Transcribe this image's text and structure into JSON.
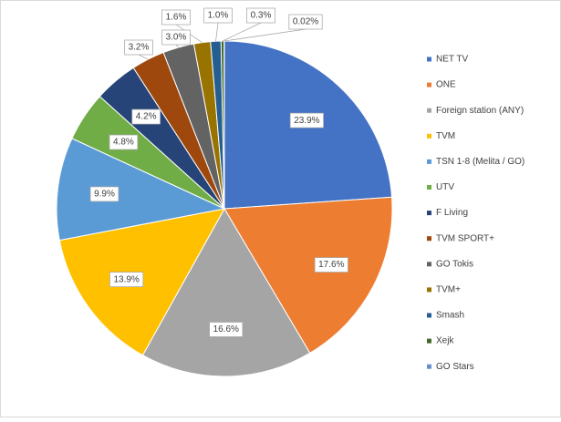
{
  "chart_data": {
    "type": "pie",
    "categories": [
      "NET TV",
      "ONE",
      "Foreign station (ANY)",
      "TVM",
      "TSN 1-8 (Melita / GO)",
      "UTV",
      "F Living",
      "TVM SPORT+",
      "GO Tokis",
      "TVM+",
      "Smash",
      "Xejk",
      "GO Stars"
    ],
    "values": [
      23.9,
      17.6,
      16.6,
      13.9,
      9.9,
      4.8,
      4.2,
      3.2,
      3.0,
      1.6,
      1.0,
      0.3,
      0.02
    ],
    "value_labels": [
      "23.9%",
      "17.6%",
      "16.6%",
      "13.9%",
      "9.9%",
      "4.8%",
      "4.2%",
      "3.2%",
      "3.0%",
      "1.6%",
      "1.0%",
      "0.3%",
      "0.02%"
    ],
    "colors": [
      "#4472c4",
      "#ed7d31",
      "#a5a5a5",
      "#ffc000",
      "#5b9bd5",
      "#70ad47",
      "#264478",
      "#9e480e",
      "#636363",
      "#997300",
      "#255e91",
      "#43682b",
      "#698ed0"
    ],
    "legend": "right"
  }
}
